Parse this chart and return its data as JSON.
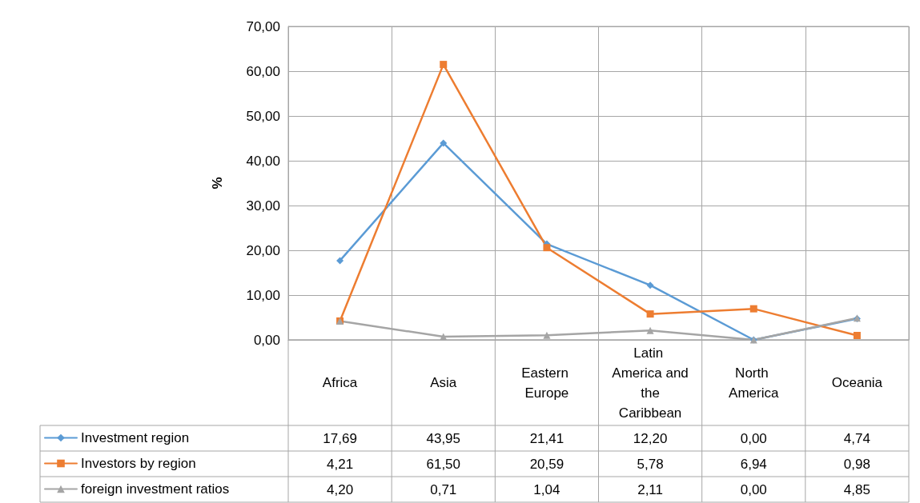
{
  "chart_data": {
    "type": "line",
    "ylabel": "%",
    "categories": [
      "Africa",
      "Asia",
      "Eastern Europe",
      "Latin America and the Caribbean",
      "North America",
      "Oceania"
    ],
    "series": [
      {
        "name": "Investment region",
        "color": "#5b9bd5",
        "marker": "diamond",
        "values": [
          17.69,
          43.95,
          21.41,
          12.2,
          0.0,
          4.74
        ],
        "value_labels": [
          "17,69",
          "43,95",
          "21,41",
          "12,20",
          "0,00",
          "4,74"
        ]
      },
      {
        "name": "Investors by region",
        "color": "#ed7d31",
        "marker": "square",
        "values": [
          4.21,
          61.5,
          20.59,
          5.78,
          6.94,
          0.98
        ],
        "value_labels": [
          "4,21",
          "61,50",
          "20,59",
          "5,78",
          "6,94",
          "0,98"
        ]
      },
      {
        "name": "foreign investment ratios",
        "color": "#a5a5a5",
        "marker": "triangle",
        "values": [
          4.2,
          0.71,
          1.04,
          2.11,
          0.0,
          4.85
        ],
        "value_labels": [
          "4,20",
          "0,71",
          "1,04",
          "2,11",
          "0,00",
          "4,85"
        ]
      }
    ],
    "ylim": [
      0,
      70
    ],
    "yticks": [
      {
        "value": 0,
        "label": "0,00"
      },
      {
        "value": 10,
        "label": "10,00"
      },
      {
        "value": 20,
        "label": "20,00"
      },
      {
        "value": 30,
        "label": "30,00"
      },
      {
        "value": 40,
        "label": "40,00"
      },
      {
        "value": 50,
        "label": "50,00"
      },
      {
        "value": 60,
        "label": "60,00"
      },
      {
        "value": 70,
        "label": "70,00"
      }
    ],
    "grid": true,
    "legend": "bottom left",
    "line_style": "solid"
  }
}
